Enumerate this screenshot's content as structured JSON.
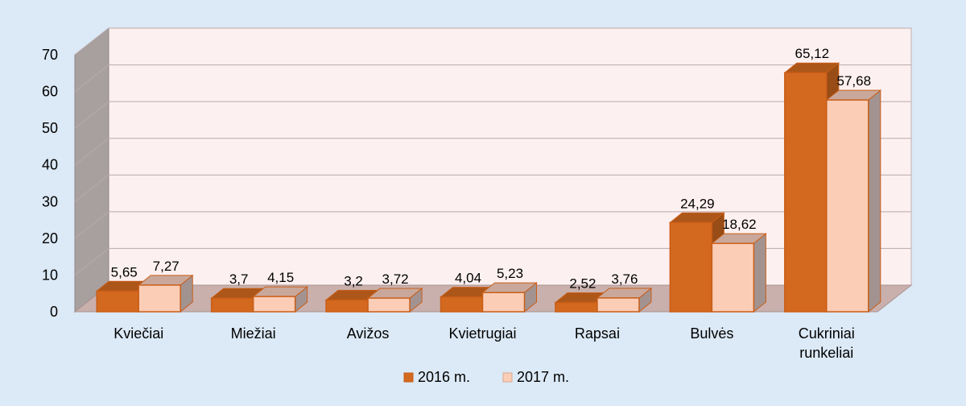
{
  "chart_data": {
    "type": "bar",
    "categories": [
      [
        "Kviečiai"
      ],
      [
        "Miežiai"
      ],
      [
        "Avižos"
      ],
      [
        "Kvietrugiai"
      ],
      [
        "Rapsai"
      ],
      [
        "Bulvės"
      ],
      [
        "Cukriniai",
        "runkeliai"
      ]
    ],
    "series": [
      {
        "name": "2016 m.",
        "values": [
          5.65,
          3.7,
          3.2,
          4.04,
          2.52,
          24.29,
          65.12
        ],
        "labels": [
          "5,65",
          "3,7",
          "3,2",
          "4,04",
          "2,52",
          "24,29",
          "65,12"
        ],
        "color": "#d3691f"
      },
      {
        "name": "2017 m.",
        "values": [
          7.27,
          4.15,
          3.72,
          5.23,
          3.76,
          18.62,
          57.68
        ],
        "labels": [
          "7,27",
          "4,15",
          "3,72",
          "5,23",
          "3,76",
          "18,62",
          "57,68"
        ],
        "color": "#fbcdb6"
      }
    ],
    "y_ticks": [
      "0",
      "10",
      "20",
      "30",
      "40",
      "50",
      "60",
      "70"
    ],
    "ylim": [
      0,
      70
    ],
    "title": "",
    "xlabel": "",
    "ylabel": "",
    "grid": true,
    "legend_position": "bottom",
    "three_d": true,
    "colors": {
      "background": "#dce9f6",
      "wall": "#fdf0f0",
      "grid": "#b9aaaa",
      "floor": "#c9b0ad",
      "side_wall": "#a8a09f",
      "bar_outline": "#c95d17"
    }
  }
}
